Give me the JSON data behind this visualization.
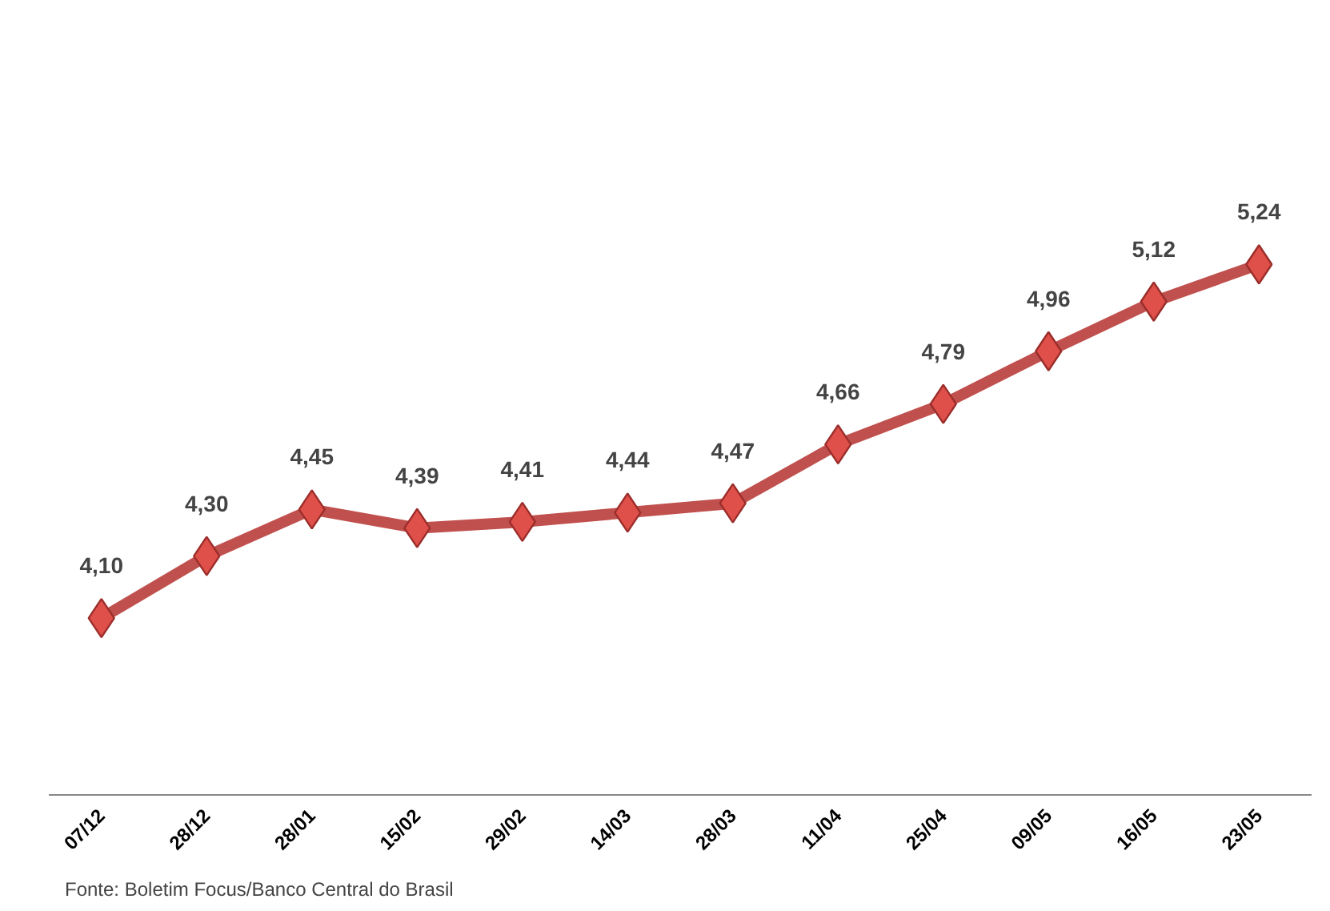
{
  "chart_data": {
    "type": "line",
    "categories": [
      "07/12",
      "28/12",
      "28/01",
      "15/02",
      "29/02",
      "14/03",
      "28/03",
      "11/04",
      "25/04",
      "09/05",
      "16/05",
      "23/05"
    ],
    "series": [
      {
        "color": "#c0504d",
        "values": [
          4.1,
          4.3,
          4.45,
          4.39,
          4.41,
          4.44,
          4.47,
          4.66,
          4.79,
          4.96,
          5.12,
          5.24
        ],
        "value_labels": [
          "4,10",
          "4,30",
          "4,45",
          "4,39",
          "4,41",
          "4,44",
          "4,47",
          "4,66",
          "4,79",
          "4,96",
          "5,12",
          "5,24"
        ]
      }
    ],
    "marker": "diamond",
    "line_style": "solid",
    "tick_labels": "x",
    "annotations": [
      "Fonte: Boletim Focus/Banco Central do Brasil"
    ]
  }
}
